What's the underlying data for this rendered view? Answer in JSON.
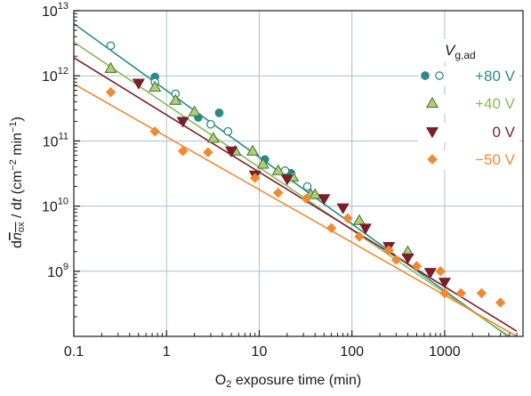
{
  "chart_data": {
    "type": "scatter",
    "x_scale": "log",
    "y_scale": "log",
    "xlim": [
      0.1,
      7000
    ],
    "ylim": [
      100000000.0,
      10000000000000.0
    ],
    "grid": true,
    "xlabel": "O2 exposure time (min)",
    "xlabel_parts": {
      "pre": "O",
      "sub": "2",
      "post": " exposure time (min)"
    },
    "ylabel": "dn̅ox / dt (cm−2 min−1)",
    "ylabel_parts": {
      "d1": "d",
      "n": "n",
      "ox": "ox",
      "slash": " / d",
      "t": "t",
      "unit_open": " (cm",
      "exp1": "−2",
      "unit_mid": " min",
      "exp2": "−1",
      "unit_close": ")"
    },
    "x_ticks": [
      {
        "value": 0.1,
        "label": "0.1"
      },
      {
        "value": 1,
        "label": "1"
      },
      {
        "value": 10,
        "label": "10"
      },
      {
        "value": 100,
        "label": "100"
      },
      {
        "value": 1000,
        "label": "1000"
      }
    ],
    "y_ticks": [
      {
        "value": 1000000000.0,
        "base": "10",
        "exp": "9"
      },
      {
        "value": 10000000000.0,
        "base": "10",
        "exp": "10"
      },
      {
        "value": 100000000000.0,
        "base": "10",
        "exp": "11"
      },
      {
        "value": 1000000000000.0,
        "base": "10",
        "exp": "12"
      },
      {
        "value": 10000000000000.0,
        "base": "10",
        "exp": "13"
      }
    ],
    "legend": {
      "title": "V",
      "title_sub": "g,ad",
      "placement": "top-right"
    },
    "series": [
      {
        "name": "+80 V",
        "color": "#2a8a8a",
        "marker": "circle",
        "filled": [
          [
            0.75,
            960000000000.0
          ],
          [
            2.2,
            230000000000.0
          ],
          [
            3.7,
            270000000000.0
          ],
          [
            11.5,
            52000000000.0
          ],
          [
            22,
            32000000000.0
          ]
        ],
        "open": [
          [
            0.25,
            2900000000000.0
          ],
          [
            0.75,
            800000000000.0
          ],
          [
            1.25,
            530000000000.0
          ],
          [
            3.0,
            180000000000.0
          ],
          [
            4.6,
            140000000000.0
          ],
          [
            19,
            35000000000.0
          ],
          [
            33,
            20000000000.0
          ]
        ],
        "fit": [
          [
            0.1,
            6300000000000.0
          ],
          [
            6000,
            80000000.0
          ]
        ]
      },
      {
        "name": "+40 V",
        "color": "#8aba58",
        "marker": "triangle-up",
        "points": [
          [
            0.25,
            1300000000000.0
          ],
          [
            0.75,
            670000000000.0
          ],
          [
            1.25,
            420000000000.0
          ],
          [
            2.0,
            280000000000.0
          ],
          [
            3.2,
            110000000000.0
          ],
          [
            5.5,
            70000000000.0
          ],
          [
            8.5,
            70000000000.0
          ],
          [
            11,
            44000000000.0
          ],
          [
            16,
            35000000000.0
          ],
          [
            23,
            28000000000.0
          ],
          [
            36,
            15000000000.0
          ],
          [
            40,
            15000000000.0
          ],
          [
            120,
            6000000000.0
          ],
          [
            400,
            2000000000.0
          ]
        ],
        "fit": [
          [
            0.1,
            3300000000000.0
          ],
          [
            5000,
            100000000.0
          ]
        ]
      },
      {
        "name": "0 V",
        "color": "#7a1e28",
        "marker": "triangle-down",
        "points": [
          [
            0.5,
            770000000000.0
          ],
          [
            1.5,
            200000000000.0
          ],
          [
            5.0,
            70000000000.0
          ],
          [
            9.0,
            30000000000.0
          ],
          [
            20,
            26000000000.0
          ],
          [
            50,
            13000000000.0
          ],
          [
            80,
            9400000000.0
          ],
          [
            140,
            4600000000.0
          ],
          [
            250,
            2400000000.0
          ],
          [
            400,
            1600000000.0
          ],
          [
            700,
            960000000.0
          ],
          [
            1000,
            680000000.0
          ]
        ],
        "fit": [
          [
            0.1,
            1900000000000.0
          ],
          [
            6000,
            120000000.0
          ]
        ]
      },
      {
        "name": "−50 V",
        "color": "#f08a30",
        "marker": "diamond",
        "points": [
          [
            0.25,
            560000000000.0
          ],
          [
            0.75,
            140000000000.0
          ],
          [
            1.5,
            70000000000.0
          ],
          [
            2.8,
            67000000000.0
          ],
          [
            9.0,
            27000000000.0
          ],
          [
            16,
            16000000000.0
          ],
          [
            32,
            13000000000.0
          ],
          [
            60,
            4600000000.0
          ],
          [
            90,
            6500000000.0
          ],
          [
            120,
            3400000000.0
          ],
          [
            250,
            2100000000.0
          ],
          [
            300,
            1500000000.0
          ],
          [
            500,
            1200000000.0
          ],
          [
            900,
            1000000000.0
          ],
          [
            1000,
            460000000.0
          ],
          [
            1500,
            460000000.0
          ],
          [
            2500,
            460000000.0
          ],
          [
            4000,
            330000000.0
          ]
        ],
        "fit": [
          [
            0.1,
            750000000000.0
          ],
          [
            6000,
            100000000.0
          ]
        ]
      }
    ]
  }
}
